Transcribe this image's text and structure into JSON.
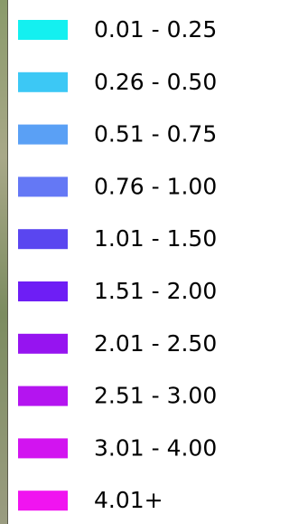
{
  "legend": {
    "items": [
      {
        "label": "0.01 - 0.25",
        "color": "#14f0f0"
      },
      {
        "label": "0.26 - 0.50",
        "color": "#3cc8f5"
      },
      {
        "label": "0.51 - 0.75",
        "color": "#5aa0f5"
      },
      {
        "label": "0.76 - 1.00",
        "color": "#6478f5"
      },
      {
        "label": "1.01 - 1.50",
        "color": "#5a46f0"
      },
      {
        "label": "1.51 - 2.00",
        "color": "#6e1ef5"
      },
      {
        "label": "2.01 - 2.50",
        "color": "#9614f0"
      },
      {
        "label": "2.51 - 3.00",
        "color": "#b414f0"
      },
      {
        "label": "3.01 - 4.00",
        "color": "#d214f0"
      },
      {
        "label": "4.01+",
        "color": "#f014f0"
      }
    ]
  }
}
